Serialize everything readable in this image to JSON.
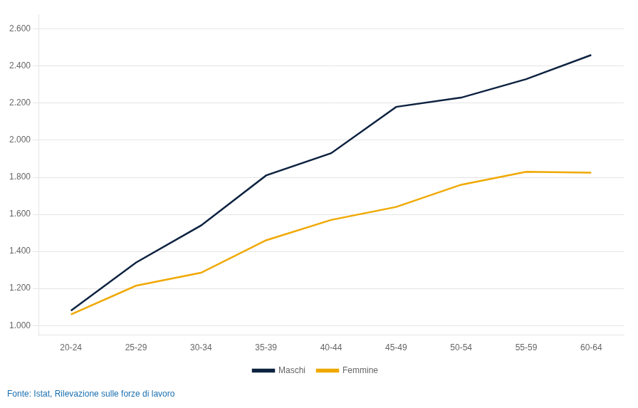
{
  "chart_data": {
    "type": "line",
    "categories": [
      "20-24",
      "25-29",
      "30-34",
      "35-39",
      "40-44",
      "45-49",
      "50-54",
      "55-59",
      "60-64"
    ],
    "series": [
      {
        "name": "Maschi",
        "color": "#0d2240",
        "values": [
          1080,
          1340,
          1540,
          1810,
          1930,
          2180,
          2230,
          2330,
          2460
        ]
      },
      {
        "name": "Femmine",
        "color": "#f0a800",
        "values": [
          1060,
          1215,
          1285,
          1460,
          1570,
          1640,
          1760,
          1830,
          1825
        ]
      }
    ],
    "ylim": [
      950,
      2680
    ],
    "yticks": [
      {
        "value": 1000,
        "label": "1.000"
      },
      {
        "value": 1200,
        "label": "1.200"
      },
      {
        "value": 1400,
        "label": "1.400"
      },
      {
        "value": 1600,
        "label": "1.600"
      },
      {
        "value": 1800,
        "label": "1.800"
      },
      {
        "value": 2000,
        "label": "2.000"
      },
      {
        "value": 2200,
        "label": "2.200"
      },
      {
        "value": 2400,
        "label": "2.400"
      },
      {
        "value": 2600,
        "label": "2.600"
      }
    ],
    "grid": true,
    "legend": "bottom",
    "annotation": "Fonte: Istat, Rilevazione sulle forze di lavoro"
  }
}
